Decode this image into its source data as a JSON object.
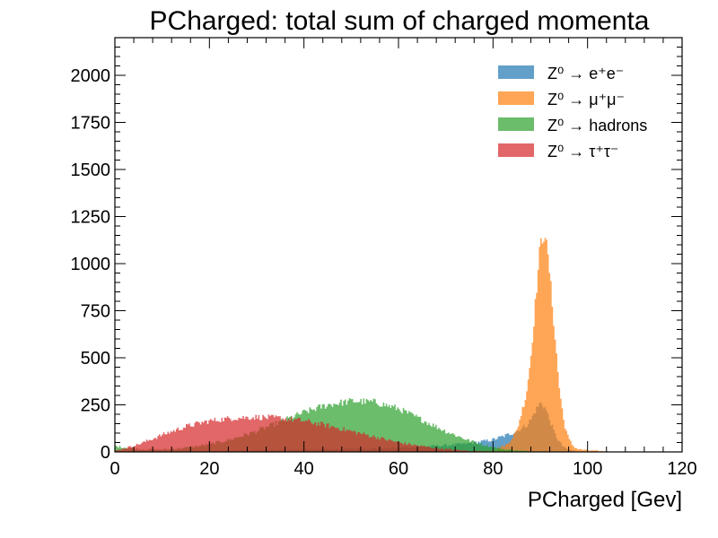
{
  "chart_data": {
    "type": "histogram",
    "title": "PCharged: total sum of charged momenta",
    "xlabel": "PCharged [Gev]",
    "ylabel": "",
    "xlim": [
      0,
      120
    ],
    "ylim": [
      0,
      2200
    ],
    "x_ticks": [
      0,
      20,
      40,
      60,
      80,
      100,
      120
    ],
    "y_ticks": [
      0,
      250,
      500,
      750,
      1000,
      1250,
      1500,
      1750,
      2000
    ],
    "bin_width": 0.3,
    "legend_position": "top-right",
    "grid": false,
    "x_points": [
      0,
      5,
      10,
      15,
      20,
      25,
      30,
      35,
      40,
      45,
      50,
      55,
      60,
      65,
      70,
      75,
      80,
      83,
      85,
      87,
      88,
      89,
      90,
      91,
      92,
      93,
      94,
      95,
      96,
      97,
      98,
      100,
      105,
      110,
      115,
      120
    ],
    "series": [
      {
        "name": "Z⁰ → e⁺e⁻",
        "color": "#1f77b4",
        "values": [
          0,
          0,
          1,
          2,
          4,
          6,
          8,
          10,
          12,
          14,
          16,
          18,
          22,
          28,
          35,
          45,
          65,
          90,
          110,
          140,
          170,
          220,
          260,
          240,
          170,
          100,
          55,
          25,
          12,
          6,
          3,
          1,
          0,
          0,
          0,
          0
        ]
      },
      {
        "name": "Z⁰ → μ⁺μ⁻",
        "color": "#ff7f0e",
        "values": [
          0,
          0,
          0,
          0,
          0,
          0,
          0,
          0,
          0,
          0,
          0,
          0,
          0,
          0,
          0,
          2,
          10,
          40,
          110,
          300,
          500,
          800,
          1100,
          1170,
          950,
          650,
          350,
          160,
          70,
          30,
          15,
          8,
          2,
          1,
          0,
          0
        ]
      },
      {
        "name": "Z⁰ → hadrons",
        "color": "#2ca02c",
        "values": [
          30,
          15,
          12,
          22,
          40,
          70,
          110,
          160,
          210,
          250,
          270,
          265,
          230,
          170,
          110,
          60,
          25,
          12,
          8,
          4,
          3,
          2,
          1,
          1,
          0,
          0,
          0,
          0,
          0,
          0,
          0,
          0,
          0,
          0,
          0,
          0
        ]
      },
      {
        "name": "Z⁰ → τ⁺τ⁻",
        "color": "#d62728",
        "values": [
          5,
          40,
          90,
          135,
          165,
          180,
          185,
          180,
          165,
          140,
          110,
          80,
          50,
          30,
          15,
          6,
          2,
          1,
          0,
          0,
          0,
          0,
          0,
          0,
          0,
          0,
          0,
          0,
          0,
          0,
          0,
          0,
          0,
          0,
          0,
          0
        ]
      }
    ]
  }
}
